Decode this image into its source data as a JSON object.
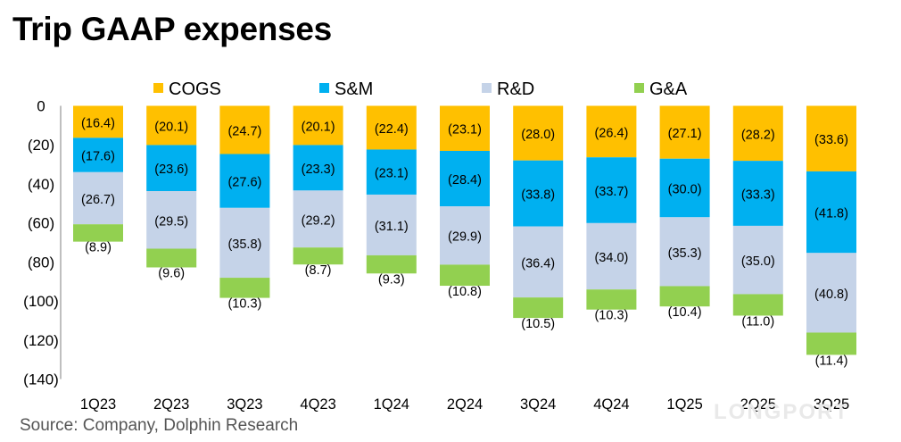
{
  "title": "Trip GAAP expenses",
  "source": "Source: Company, Dolphin Research",
  "watermark": "LONGPORT",
  "chart_data": {
    "type": "bar",
    "stacked": true,
    "categories": [
      "1Q23",
      "2Q23",
      "3Q23",
      "4Q23",
      "1Q24",
      "2Q24",
      "3Q24",
      "4Q24",
      "1Q25",
      "2Q25",
      "3Q25"
    ],
    "series": [
      {
        "name": "COGS",
        "color": "#ffc000",
        "values": [
          -16.4,
          -20.1,
          -24.7,
          -20.1,
          -22.4,
          -23.1,
          -28.0,
          -26.4,
          -27.1,
          -28.2,
          -33.6
        ]
      },
      {
        "name": "S&M",
        "color": "#00b0f0",
        "values": [
          -17.6,
          -23.6,
          -27.6,
          -23.3,
          -23.1,
          -28.4,
          -33.8,
          -33.7,
          -30.0,
          -33.3,
          -41.8
        ]
      },
      {
        "name": "R&D",
        "color": "#c5d3e8",
        "values": [
          -26.7,
          -29.5,
          -35.8,
          -29.2,
          -31.1,
          -29.9,
          -36.4,
          -34.0,
          -35.3,
          -35.0,
          -40.8
        ]
      },
      {
        "name": "G&A",
        "color": "#92d050",
        "values": [
          -8.9,
          -9.6,
          -10.3,
          -8.7,
          -9.3,
          -10.8,
          -10.5,
          -10.3,
          -10.4,
          -11.0,
          -11.4
        ]
      }
    ],
    "data_labels": [
      [
        "(16.4)",
        "(20.1)",
        "(24.7)",
        "(20.1)",
        "(22.4)",
        "(23.1)",
        "(28.0)",
        "(26.4)",
        "(27.1)",
        "(28.2)",
        "(33.6)"
      ],
      [
        "(17.6)",
        "(23.6)",
        "(27.6)",
        "(23.3)",
        "(23.1)",
        "(28.4)",
        "(33.8)",
        "(33.7)",
        "(30.0)",
        "(33.3)",
        "(41.8)"
      ],
      [
        "(26.7)",
        "(29.5)",
        "(35.8)",
        "(29.2)",
        "(31.1)",
        "(29.9)",
        "(36.4)",
        "(34.0)",
        "(35.3)",
        "(35.0)",
        "(40.8)"
      ],
      [
        "(8.9)",
        "(9.6)",
        "(10.3)",
        "(8.7)",
        "(9.3)",
        "(10.8)",
        "(10.5)",
        "(10.3)",
        "(10.4)",
        "(11.0)",
        "(11.4)"
      ]
    ],
    "y_ticks": [
      0,
      -20,
      -40,
      -60,
      -80,
      -100,
      -120,
      -140
    ],
    "y_tick_labels": [
      "0",
      "(20)",
      "(40)",
      "(60)",
      "(80)",
      "(100)",
      "(120)",
      "(140)"
    ],
    "ylim": [
      -140,
      0
    ],
    "legend_position": "top",
    "grid": false
  }
}
